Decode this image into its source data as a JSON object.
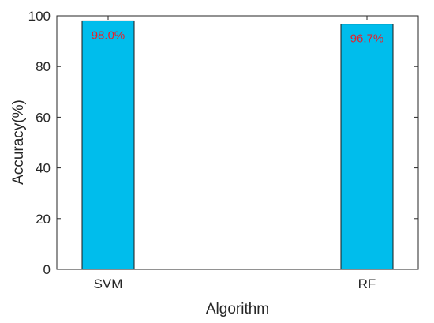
{
  "chart_data": {
    "type": "bar",
    "categories": [
      "SVM",
      "RF"
    ],
    "values": [
      98.0,
      96.7
    ],
    "data_labels": [
      "98.0%",
      "96.7%"
    ],
    "title": "",
    "xlabel": "Algorithm",
    "ylabel": "Accuracy(%)",
    "ylim": [
      0,
      100
    ],
    "yticks": [
      0,
      20,
      40,
      60,
      80,
      100
    ],
    "grid": false,
    "box": true,
    "colors": {
      "bar_fill": "#00bdec",
      "bar_edge": "#1a1a1a",
      "data_label": "#e8202a",
      "axis": "#262626"
    }
  }
}
